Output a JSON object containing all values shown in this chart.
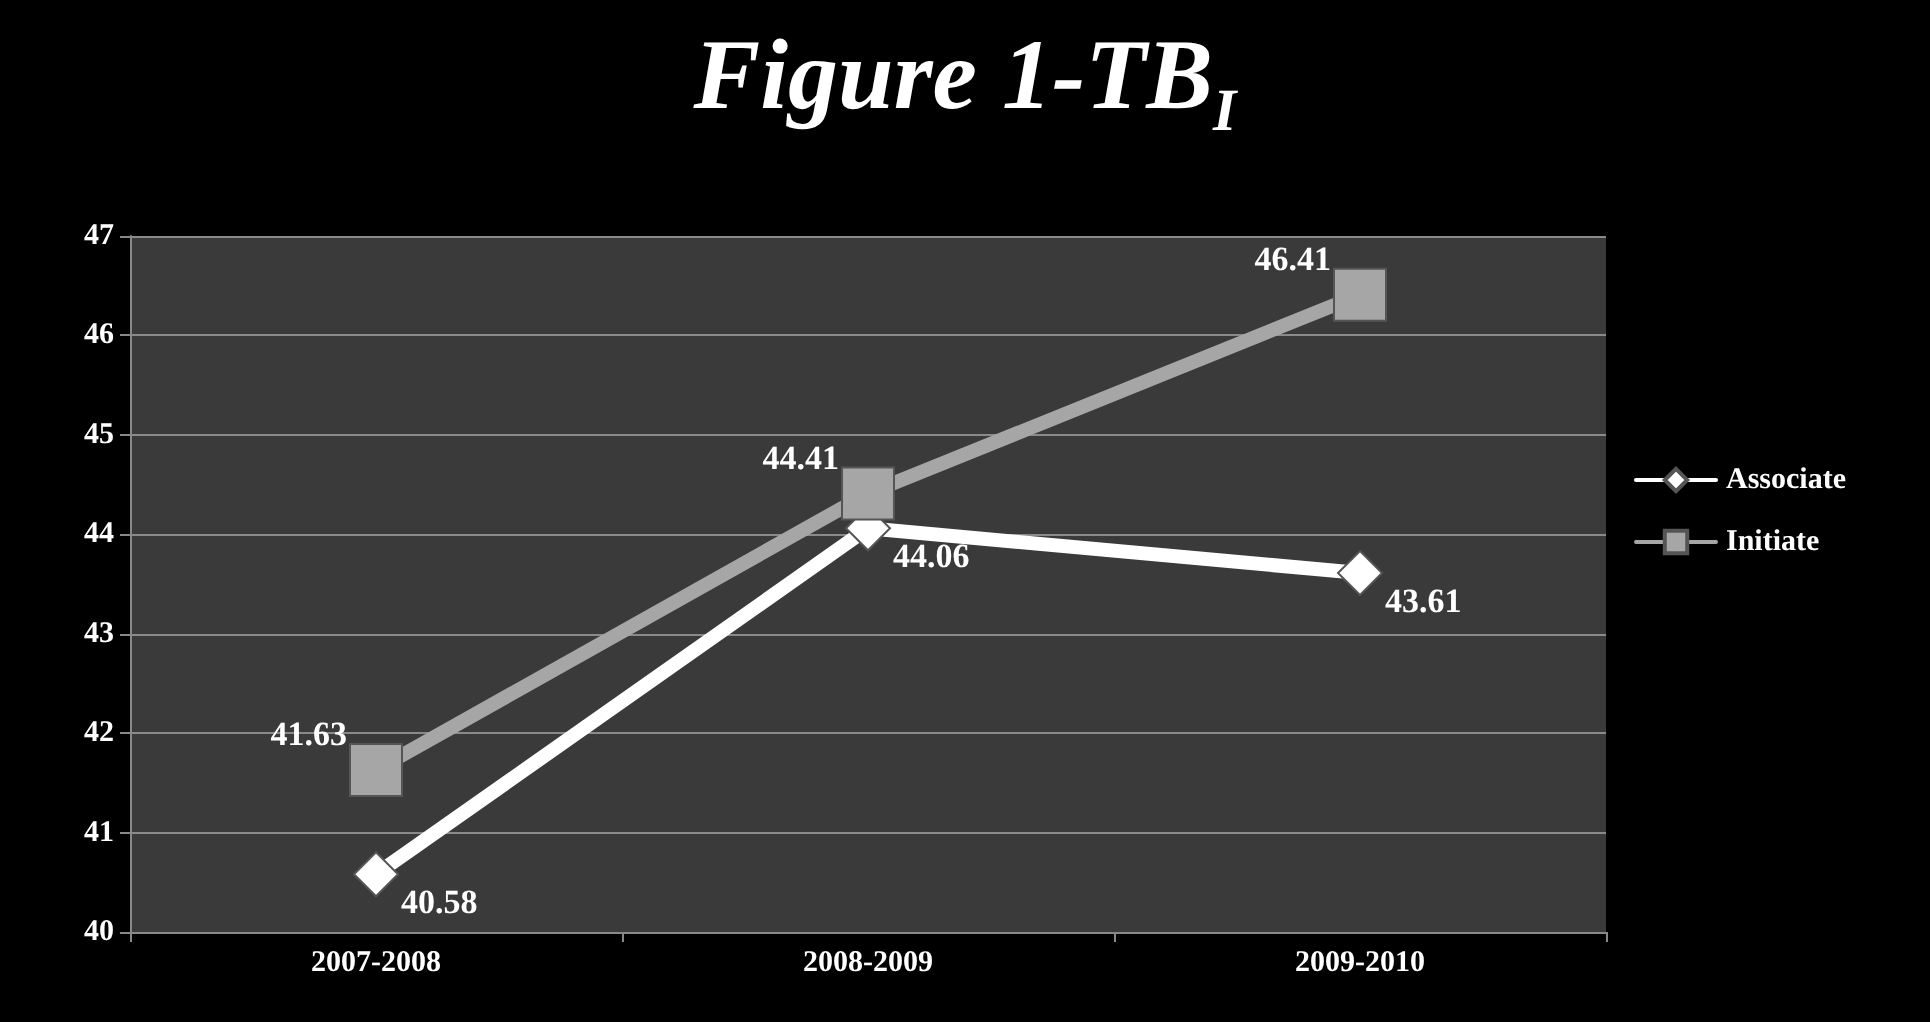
{
  "chart_data": {
    "type": "line",
    "title": "Figure 1-TB$_{I}$",
    "categories": [
      "2007-2008",
      "2008-2009",
      "2009-2010"
    ],
    "series": [
      {
        "name": "Associate",
        "color": "#ffffff",
        "marker": "diamond",
        "values": [
          40.58,
          44.06,
          43.61
        ]
      },
      {
        "name": "Initiate",
        "color": "#a6a6a6",
        "marker": "square",
        "values": [
          41.63,
          44.41,
          46.41
        ]
      }
    ],
    "ylim": [
      40,
      47
    ],
    "yticks": [
      40,
      41,
      42,
      43,
      44,
      45,
      46,
      47
    ],
    "grid": "y",
    "legend": "right",
    "data_labels": true,
    "line_style": "solid"
  }
}
